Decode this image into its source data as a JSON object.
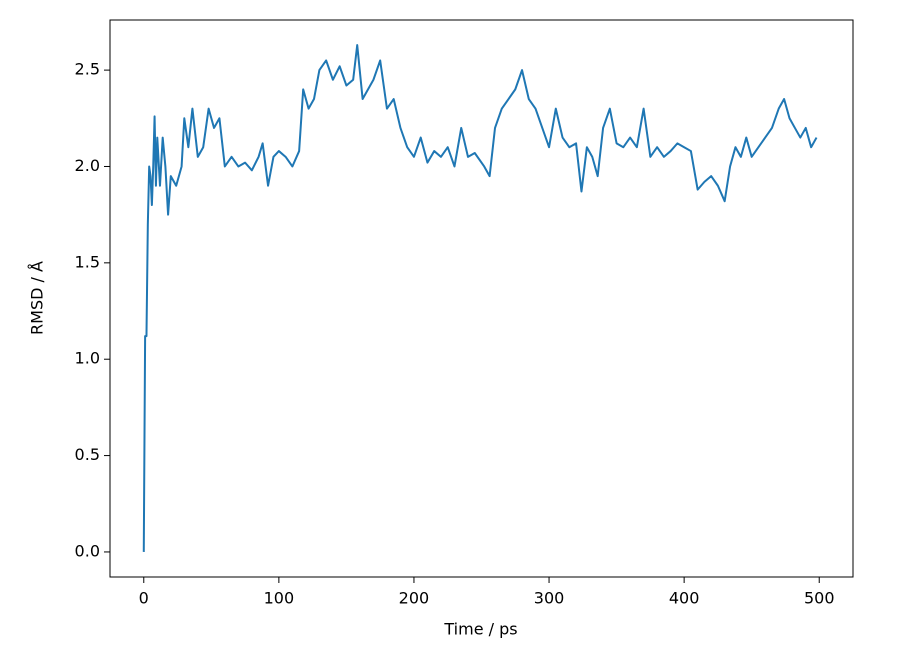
{
  "chart_data": {
    "type": "line",
    "xlabel": "Time / ps",
    "ylabel": "RMSD / Å",
    "color": "#1f77b4",
    "x": [
      0,
      1,
      2,
      3,
      4,
      5,
      6,
      7,
      8,
      9,
      10,
      12,
      14,
      16,
      18,
      20,
      24,
      28,
      30,
      33,
      36,
      40,
      44,
      48,
      52,
      56,
      60,
      65,
      70,
      75,
      80,
      85,
      88,
      92,
      96,
      100,
      105,
      110,
      115,
      118,
      122,
      126,
      130,
      135,
      140,
      145,
      150,
      155,
      158,
      162,
      166,
      170,
      175,
      180,
      185,
      190,
      195,
      200,
      205,
      210,
      215,
      220,
      225,
      230,
      235,
      240,
      245,
      252,
      256,
      260,
      265,
      270,
      275,
      280,
      285,
      290,
      295,
      300,
      305,
      310,
      315,
      320,
      324,
      328,
      332,
      336,
      340,
      345,
      350,
      355,
      360,
      365,
      370,
      375,
      380,
      385,
      390,
      395,
      400,
      405,
      410,
      415,
      420,
      425,
      430,
      434,
      438,
      442,
      446,
      450,
      455,
      460,
      465,
      470,
      474,
      478,
      482,
      486,
      490,
      494,
      498
    ],
    "values": [
      0.0,
      1.12,
      1.12,
      1.7,
      2.0,
      1.95,
      1.8,
      2.0,
      2.26,
      1.9,
      2.15,
      1.9,
      2.15,
      2.0,
      1.75,
      1.95,
      1.9,
      2.0,
      2.25,
      2.1,
      2.3,
      2.05,
      2.1,
      2.3,
      2.2,
      2.25,
      2.0,
      2.05,
      2.0,
      2.02,
      1.98,
      2.05,
      2.12,
      1.9,
      2.05,
      2.08,
      2.05,
      2.0,
      2.08,
      2.4,
      2.3,
      2.35,
      2.5,
      2.55,
      2.45,
      2.52,
      2.42,
      2.45,
      2.63,
      2.35,
      2.4,
      2.45,
      2.55,
      2.3,
      2.35,
      2.2,
      2.1,
      2.05,
      2.15,
      2.02,
      2.08,
      2.05,
      2.1,
      2.0,
      2.2,
      2.05,
      2.07,
      2.0,
      1.95,
      2.2,
      2.3,
      2.35,
      2.4,
      2.5,
      2.35,
      2.3,
      2.2,
      2.1,
      2.3,
      2.15,
      2.1,
      2.12,
      1.87,
      2.1,
      2.05,
      1.95,
      2.2,
      2.3,
      2.12,
      2.1,
      2.15,
      2.1,
      2.3,
      2.05,
      2.1,
      2.05,
      2.08,
      2.12,
      2.1,
      2.08,
      1.88,
      1.92,
      1.95,
      1.9,
      1.82,
      2.0,
      2.1,
      2.05,
      2.15,
      2.05,
      2.1,
      2.15,
      2.2,
      2.3,
      2.35,
      2.25,
      2.2,
      2.15,
      2.2,
      2.1,
      2.15
    ],
    "xlim": [
      -25,
      525
    ],
    "xticks": [
      0,
      100,
      200,
      300,
      400,
      500
    ],
    "ylim": [
      -0.13,
      2.76
    ],
    "yticks": [
      {
        "value": 0,
        "label": "0.0"
      },
      0.5,
      {
        "value": 1,
        "label": "1.0"
      },
      1.5,
      {
        "value": 2,
        "label": "2.0"
      },
      2.5
    ]
  }
}
